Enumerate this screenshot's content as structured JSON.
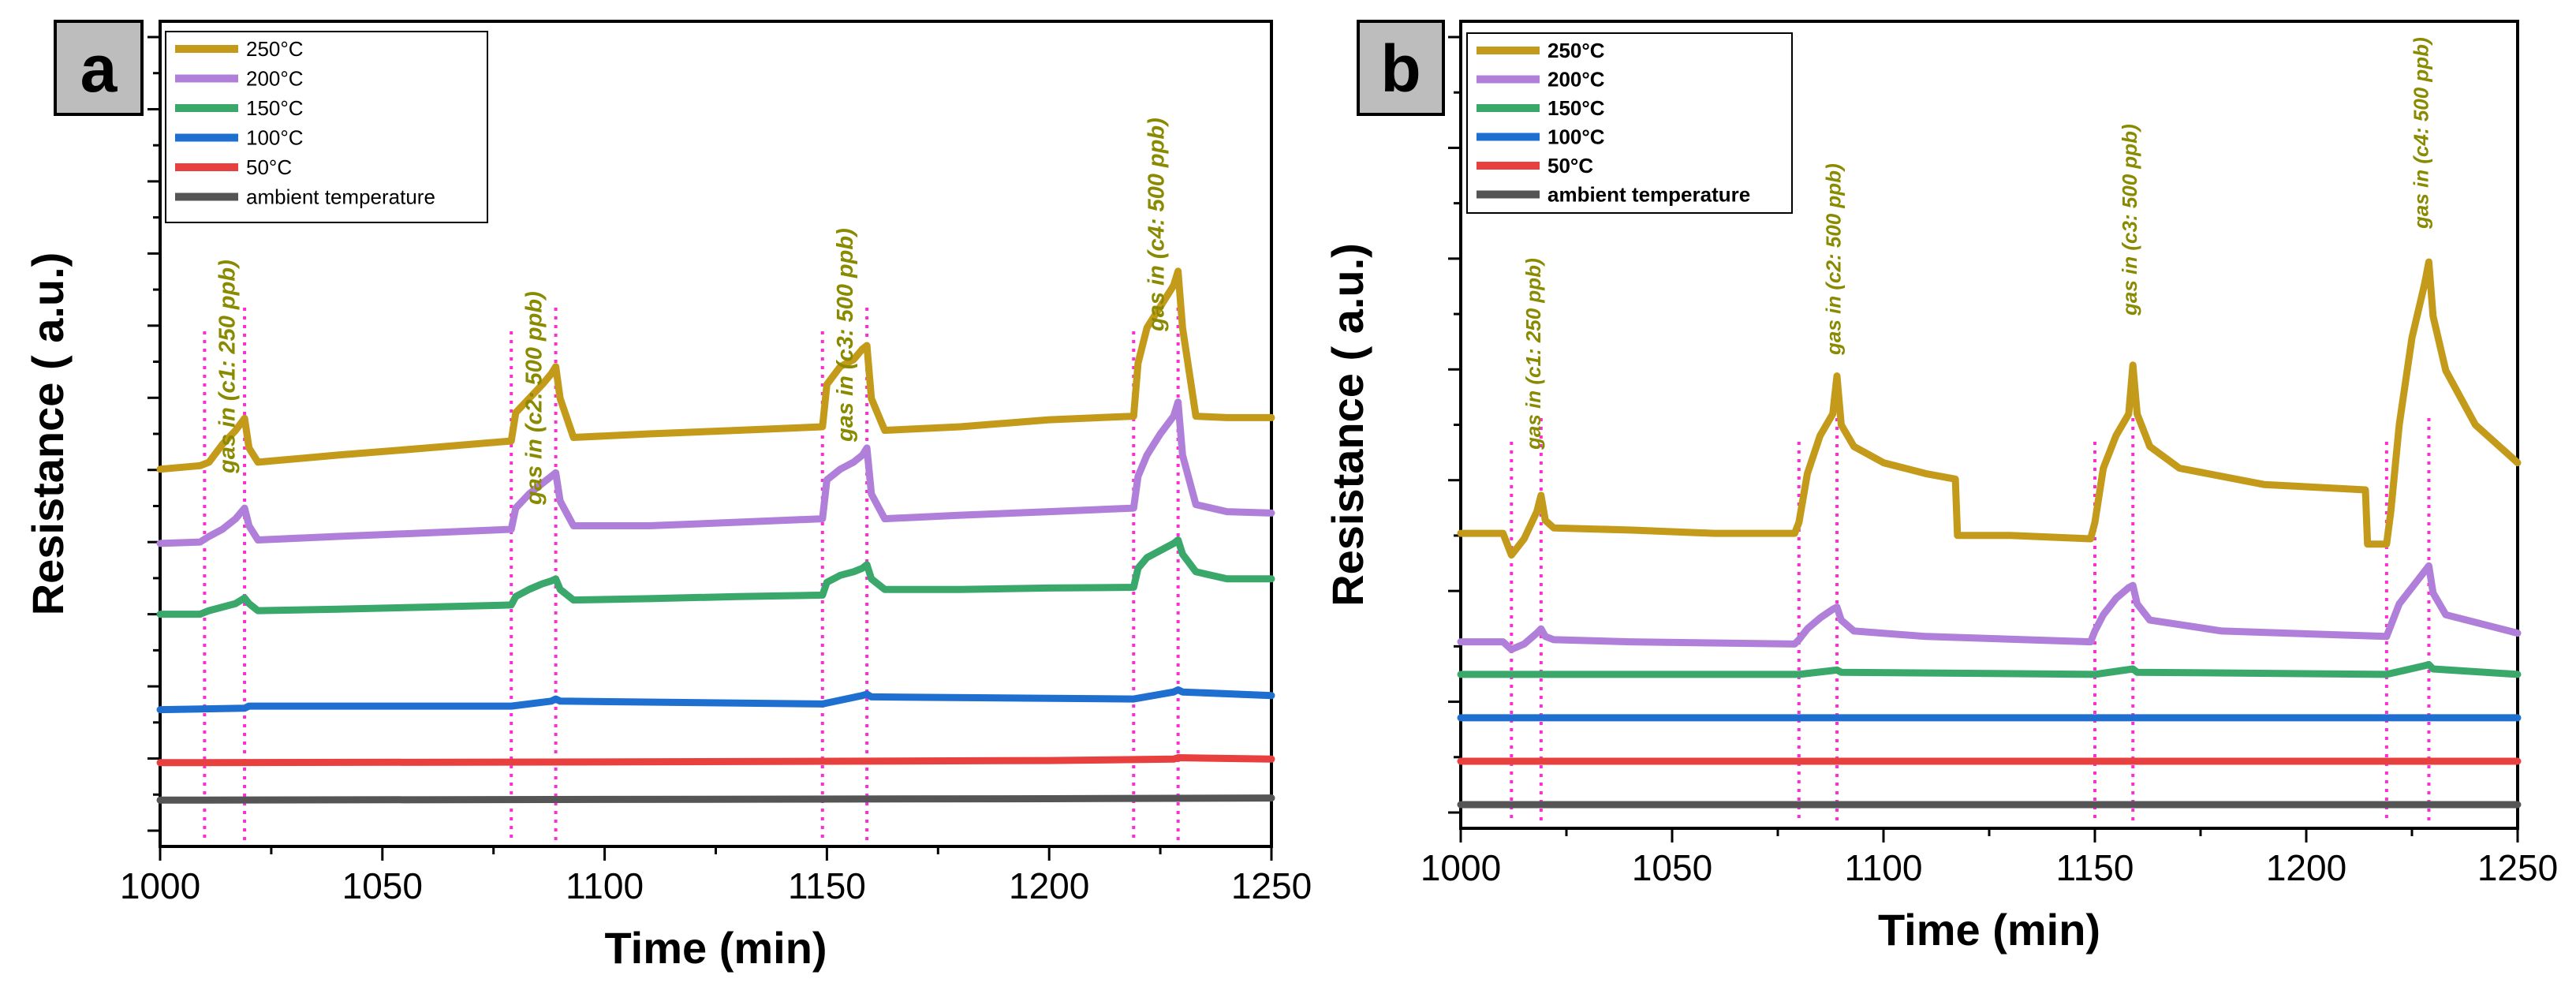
{
  "chart_data": [
    {
      "type": "line",
      "panel_label": "a",
      "xlabel": "Time (min)",
      "ylabel": "Resistance ( a.u.)",
      "xlim": [
        1000,
        1250
      ],
      "x_ticks": [
        "1000",
        "1050",
        "1100",
        "1150",
        "1200",
        "1250"
      ],
      "ylim": [
        0,
        11
      ],
      "grid": false,
      "legend_position": "top-left",
      "legend": [
        "250°C",
        "200°C",
        "150°C",
        "100°C",
        "50°C",
        "ambient temperature"
      ],
      "gas_in_marks": [
        1010,
        1019,
        1079,
        1089,
        1149,
        1159,
        1219,
        1229
      ],
      "annotations": [
        {
          "text": "gas in (c1: 250 ppb)",
          "x": 1015
        },
        {
          "text": "gas in (c2: 500 ppb)",
          "x": 1084
        },
        {
          "text": "gas in (c3: 500 ppb)",
          "x": 1154
        },
        {
          "text": "gas in (c4: 500 ppb)",
          "x": 1224
        }
      ],
      "series": [
        {
          "name": "250°C",
          "color": "#c49a1a",
          "x": [
            1000,
            1009,
            1011,
            1014,
            1017,
            1019,
            1020,
            1022,
            1040,
            1060,
            1079,
            1080,
            1083,
            1086,
            1088,
            1089,
            1090,
            1093,
            1110,
            1130,
            1149,
            1150,
            1153,
            1156,
            1158,
            1159,
            1160,
            1163,
            1180,
            1200,
            1219,
            1220,
            1222,
            1225,
            1228,
            1229,
            1230,
            1233,
            1240,
            1250
          ],
          "y": [
            5.0,
            5.05,
            5.1,
            5.35,
            5.55,
            5.72,
            5.3,
            5.1,
            5.2,
            5.3,
            5.4,
            5.8,
            6.0,
            6.2,
            6.35,
            6.45,
            6.0,
            5.45,
            5.5,
            5.55,
            5.6,
            6.2,
            6.45,
            6.55,
            6.7,
            6.75,
            6.0,
            5.55,
            5.6,
            5.7,
            5.75,
            6.5,
            7.0,
            7.3,
            7.6,
            7.8,
            7.0,
            5.75,
            5.73,
            5.73
          ]
        },
        {
          "name": "200°C",
          "color": "#b07fd9",
          "x": [
            1000,
            1009,
            1011,
            1014,
            1017,
            1019,
            1020,
            1022,
            1040,
            1060,
            1079,
            1080,
            1083,
            1086,
            1088,
            1089,
            1090,
            1093,
            1110,
            1130,
            1149,
            1150,
            1153,
            1156,
            1158,
            1159,
            1160,
            1163,
            1180,
            1200,
            1219,
            1220,
            1222,
            1225,
            1228,
            1229,
            1230,
            1233,
            1240,
            1250
          ],
          "y": [
            3.95,
            3.97,
            4.05,
            4.15,
            4.3,
            4.45,
            4.2,
            4.0,
            4.05,
            4.1,
            4.15,
            4.45,
            4.65,
            4.8,
            4.9,
            4.95,
            4.55,
            4.2,
            4.2,
            4.25,
            4.3,
            4.85,
            5.0,
            5.1,
            5.2,
            5.3,
            4.65,
            4.3,
            4.35,
            4.4,
            4.45,
            4.9,
            5.2,
            5.5,
            5.75,
            5.95,
            5.2,
            4.5,
            4.4,
            4.38
          ]
        },
        {
          "name": "150°C",
          "color": "#3aa86b",
          "x": [
            1000,
            1009,
            1011,
            1014,
            1017,
            1019,
            1020,
            1022,
            1040,
            1060,
            1079,
            1080,
            1083,
            1086,
            1088,
            1089,
            1090,
            1093,
            1110,
            1130,
            1149,
            1150,
            1153,
            1156,
            1158,
            1159,
            1160,
            1163,
            1180,
            1200,
            1219,
            1220,
            1222,
            1225,
            1228,
            1229,
            1230,
            1233,
            1240,
            1250
          ],
          "y": [
            2.95,
            2.95,
            3.0,
            3.05,
            3.1,
            3.18,
            3.1,
            3.0,
            3.02,
            3.05,
            3.08,
            3.2,
            3.3,
            3.38,
            3.42,
            3.45,
            3.3,
            3.15,
            3.17,
            3.2,
            3.22,
            3.4,
            3.5,
            3.55,
            3.6,
            3.65,
            3.45,
            3.3,
            3.3,
            3.32,
            3.33,
            3.6,
            3.75,
            3.85,
            3.95,
            4.0,
            3.8,
            3.55,
            3.45,
            3.45
          ]
        },
        {
          "name": "100°C",
          "color": "#1f6fd1",
          "x": [
            1000,
            1019,
            1020,
            1079,
            1088,
            1089,
            1090,
            1149,
            1158,
            1159,
            1160,
            1219,
            1228,
            1229,
            1230,
            1250
          ],
          "y": [
            1.6,
            1.62,
            1.65,
            1.65,
            1.72,
            1.75,
            1.72,
            1.68,
            1.8,
            1.82,
            1.78,
            1.75,
            1.85,
            1.88,
            1.85,
            1.8
          ]
        },
        {
          "name": "50°C",
          "color": "#e8403f",
          "x": [
            1000,
            1100,
            1200,
            1228,
            1229,
            1250
          ],
          "y": [
            0.85,
            0.86,
            0.88,
            0.9,
            0.92,
            0.9
          ]
        },
        {
          "name": "ambient temperature",
          "color": "#555555",
          "x": [
            1000,
            1100,
            1200,
            1250
          ],
          "y": [
            0.32,
            0.33,
            0.34,
            0.35
          ]
        }
      ]
    },
    {
      "type": "line",
      "panel_label": "b",
      "xlabel": "Time (min)",
      "ylabel": "Resistance ( a.u.)",
      "xlim": [
        1000,
        1250
      ],
      "x_ticks": [
        "1000",
        "1050",
        "1100",
        "1150",
        "1200",
        "1250"
      ],
      "ylim": [
        0,
        7
      ],
      "grid": false,
      "legend_position": "top-left",
      "legend": [
        "250°C",
        "200°C",
        "150°C",
        "100°C",
        "50°C",
        "ambient temperature"
      ],
      "gas_in_marks": [
        1012,
        1019,
        1080,
        1089,
        1150,
        1159,
        1219,
        1229
      ],
      "annotations": [
        {
          "text": "gas in (c1: 250 ppb)",
          "x": 1017
        },
        {
          "text": "gas in (c2: 500 ppb)",
          "x": 1088
        },
        {
          "text": "gas in (c3: 500 ppb)",
          "x": 1158
        },
        {
          "text": "gas in (c4: 500 ppb)",
          "x": 1227
        }
      ],
      "series": [
        {
          "name": "250°C",
          "color": "#c49a1a",
          "x": [
            1000,
            1010,
            1012,
            1015,
            1018,
            1019,
            1020,
            1022,
            1040,
            1060,
            1079,
            1080,
            1082,
            1085,
            1088,
            1089,
            1090,
            1093,
            1100,
            1110,
            1117,
            1117.5,
            1130,
            1149,
            1150,
            1152,
            1155,
            1158,
            1159,
            1160,
            1163,
            1170,
            1190,
            1214,
            1214.5,
            1219,
            1220,
            1222,
            1225,
            1228,
            1229,
            1230,
            1233,
            1240,
            1250
          ],
          "y": [
            2.5,
            2.5,
            2.3,
            2.45,
            2.7,
            2.85,
            2.62,
            2.55,
            2.53,
            2.5,
            2.5,
            2.6,
            3.05,
            3.4,
            3.6,
            3.95,
            3.5,
            3.3,
            3.15,
            3.05,
            3.0,
            2.48,
            2.48,
            2.45,
            2.6,
            3.1,
            3.4,
            3.6,
            4.05,
            3.6,
            3.3,
            3.1,
            2.95,
            2.9,
            2.4,
            2.4,
            2.7,
            3.5,
            4.3,
            4.8,
            5.0,
            4.5,
            4.0,
            3.5,
            3.15
          ]
        },
        {
          "name": "200°C",
          "color": "#b07fd9",
          "x": [
            1000,
            1010,
            1012,
            1015,
            1018,
            1019,
            1020,
            1022,
            1040,
            1079,
            1080,
            1082,
            1085,
            1088,
            1089,
            1090,
            1093,
            1110,
            1149,
            1150,
            1152,
            1155,
            1158,
            1159,
            1160,
            1163,
            1180,
            1219,
            1220,
            1222,
            1225,
            1228,
            1229,
            1230,
            1233,
            1250
          ],
          "y": [
            1.5,
            1.5,
            1.43,
            1.48,
            1.58,
            1.62,
            1.55,
            1.52,
            1.5,
            1.48,
            1.52,
            1.62,
            1.72,
            1.8,
            1.82,
            1.7,
            1.6,
            1.55,
            1.5,
            1.6,
            1.75,
            1.9,
            2.0,
            2.02,
            1.85,
            1.7,
            1.6,
            1.55,
            1.65,
            1.85,
            2.0,
            2.15,
            2.2,
            1.95,
            1.75,
            1.58
          ]
        },
        {
          "name": "150°C",
          "color": "#3aa86b",
          "x": [
            1000,
            1080,
            1089,
            1090,
            1150,
            1159,
            1160,
            1219,
            1228,
            1229,
            1230,
            1250
          ],
          "y": [
            1.2,
            1.2,
            1.24,
            1.22,
            1.2,
            1.25,
            1.22,
            1.2,
            1.28,
            1.29,
            1.25,
            1.2
          ]
        },
        {
          "name": "100°C",
          "color": "#1f6fd1",
          "x": [
            1000,
            1250
          ],
          "y": [
            0.8,
            0.8
          ]
        },
        {
          "name": "50°C",
          "color": "#e8403f",
          "x": [
            1000,
            1250
          ],
          "y": [
            0.4,
            0.4
          ]
        },
        {
          "name": "ambient temperature",
          "color": "#555555",
          "x": [
            1000,
            1250
          ],
          "y": [
            0.0,
            0.0
          ]
        }
      ]
    }
  ]
}
